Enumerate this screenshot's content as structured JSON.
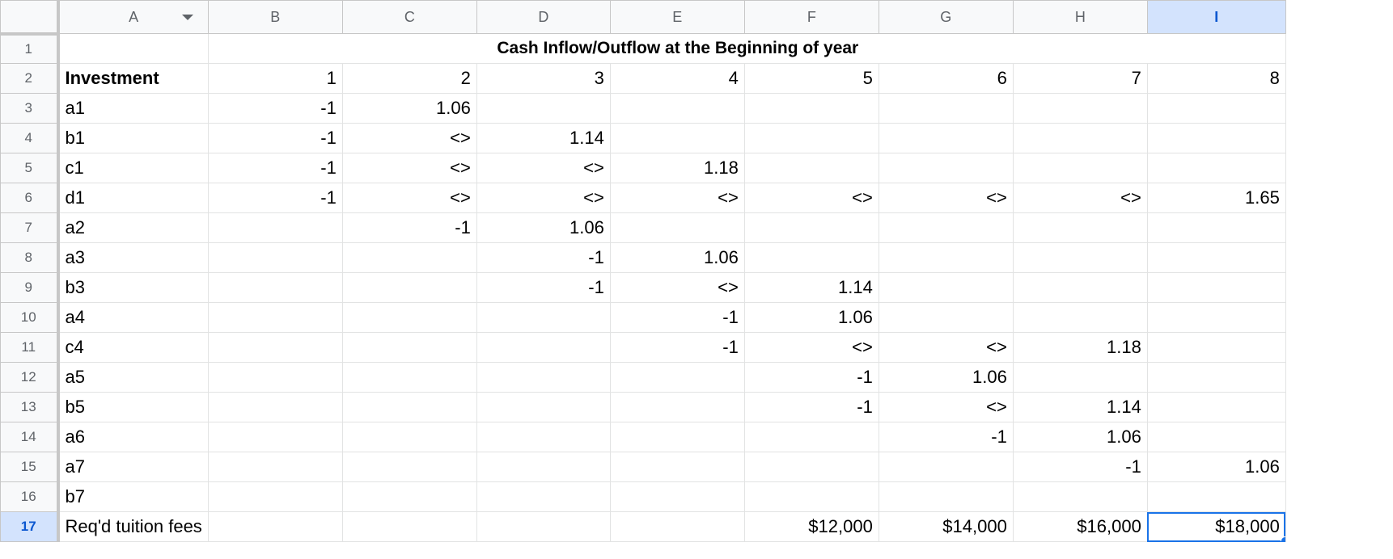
{
  "columns": [
    "A",
    "B",
    "C",
    "D",
    "E",
    "F",
    "G",
    "H",
    "I"
  ],
  "selected_column": "I",
  "selected_row": "17",
  "title": "Cash Inflow/Outflow at the Beginning of year",
  "header_row": {
    "row": "2",
    "label": "Investment",
    "years": [
      "1",
      "2",
      "3",
      "4",
      "5",
      "6",
      "7",
      "8"
    ]
  },
  "rows": [
    {
      "row": "3",
      "label": "a1",
      "cells": [
        "-1",
        "1.06",
        "",
        "",
        "",
        "",
        "",
        ""
      ]
    },
    {
      "row": "4",
      "label": "b1",
      "cells": [
        "-1",
        "<>",
        "1.14",
        "",
        "",
        "",
        "",
        ""
      ]
    },
    {
      "row": "5",
      "label": "c1",
      "cells": [
        "-1",
        "<>",
        "<>",
        "1.18",
        "",
        "",
        "",
        ""
      ]
    },
    {
      "row": "6",
      "label": "d1",
      "cells": [
        "-1",
        "<>",
        "<>",
        "<>",
        "<>",
        "<>",
        "<>",
        "1.65"
      ]
    },
    {
      "row": "7",
      "label": "a2",
      "cells": [
        "",
        "-1",
        "1.06",
        "",
        "",
        "",
        "",
        ""
      ]
    },
    {
      "row": "8",
      "label": "a3",
      "cells": [
        "",
        "",
        "-1",
        "1.06",
        "",
        "",
        "",
        ""
      ]
    },
    {
      "row": "9",
      "label": "b3",
      "cells": [
        "",
        "",
        "-1",
        "<>",
        "1.14",
        "",
        "",
        ""
      ]
    },
    {
      "row": "10",
      "label": "a4",
      "cells": [
        "",
        "",
        "",
        "-1",
        "1.06",
        "",
        "",
        ""
      ]
    },
    {
      "row": "11",
      "label": "c4",
      "cells": [
        "",
        "",
        "",
        "-1",
        "<>",
        "<>",
        "1.18",
        ""
      ]
    },
    {
      "row": "12",
      "label": "a5",
      "cells": [
        "",
        "",
        "",
        "",
        "-1",
        "1.06",
        "",
        ""
      ]
    },
    {
      "row": "13",
      "label": "b5",
      "cells": [
        "",
        "",
        "",
        "",
        "-1",
        "<>",
        "1.14",
        ""
      ]
    },
    {
      "row": "14",
      "label": "a6",
      "cells": [
        "",
        "",
        "",
        "",
        "",
        "-1",
        "1.06",
        ""
      ]
    },
    {
      "row": "15",
      "label": "a7",
      "cells": [
        "",
        "",
        "",
        "",
        "",
        "",
        "-1",
        "1.06"
      ]
    },
    {
      "row": "16",
      "label": "b7",
      "cells": [
        "",
        "",
        "",
        "",
        "",
        "",
        "",
        ""
      ]
    }
  ],
  "tuition_row": {
    "row": "17",
    "label": "Req'd tuition fees",
    "cells": [
      "",
      "",
      "",
      "",
      "$12,000",
      "$14,000",
      "$16,000",
      "$18,000"
    ]
  },
  "icons": {
    "column_filter": "chevron-down-icon"
  },
  "colors": {
    "selection": "#1a73e8",
    "selected_header_bg": "#d3e3fd"
  }
}
